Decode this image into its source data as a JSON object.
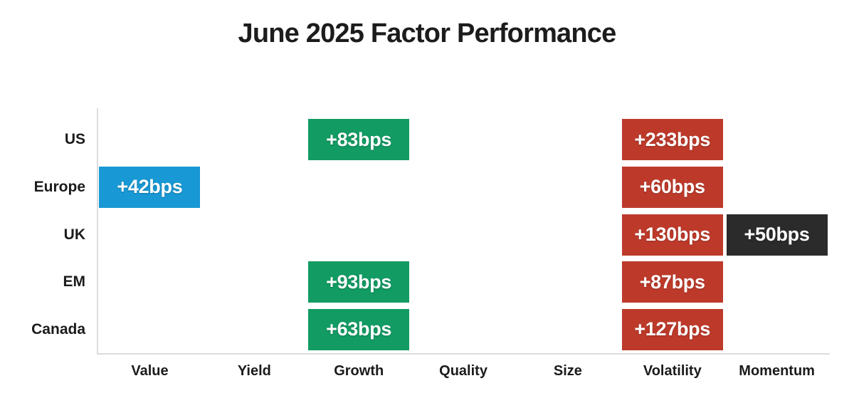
{
  "title": "June 2025 Factor Performance",
  "colors": {
    "blue": "#1898D4",
    "green": "#129B63",
    "red": "#BD3A2B",
    "black": "#2B2B2B",
    "axis": "#DCDCDC",
    "label_text": "#1B1B1B"
  },
  "chart_data": {
    "type": "heatmap",
    "title": "June 2025 Factor Performance",
    "unit": "bps",
    "rows": [
      "US",
      "Europe",
      "UK",
      "EM",
      "Canada"
    ],
    "columns": [
      "Value",
      "Yield",
      "Growth",
      "Quality",
      "Size",
      "Volatility",
      "Momentum"
    ],
    "legend": "none",
    "grid": "off",
    "cells": [
      {
        "row": "US",
        "column": "Growth",
        "label": "+83bps",
        "value": 83,
        "color": "green"
      },
      {
        "row": "US",
        "column": "Volatility",
        "label": "+233bps",
        "value": 233,
        "color": "red"
      },
      {
        "row": "Europe",
        "column": "Value",
        "label": "+42bps",
        "value": 42,
        "color": "blue"
      },
      {
        "row": "Europe",
        "column": "Volatility",
        "label": "+60bps",
        "value": 60,
        "color": "red"
      },
      {
        "row": "UK",
        "column": "Volatility",
        "label": "+130bps",
        "value": 130,
        "color": "red"
      },
      {
        "row": "UK",
        "column": "Momentum",
        "label": "+50bps",
        "value": 50,
        "color": "black"
      },
      {
        "row": "EM",
        "column": "Growth",
        "label": "+93bps",
        "value": 93,
        "color": "green"
      },
      {
        "row": "EM",
        "column": "Volatility",
        "label": "+87bps",
        "value": 87,
        "color": "red"
      },
      {
        "row": "Canada",
        "column": "Growth",
        "label": "+63bps",
        "value": 63,
        "color": "green"
      },
      {
        "row": "Canada",
        "column": "Volatility",
        "label": "+127bps",
        "value": 127,
        "color": "red"
      }
    ]
  }
}
